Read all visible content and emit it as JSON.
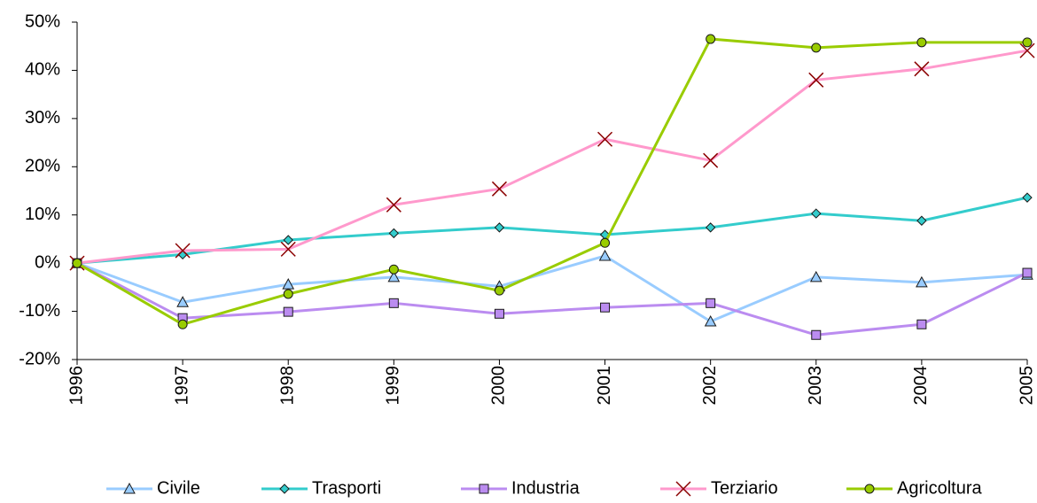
{
  "chart_data": {
    "type": "line",
    "categories": [
      "1996",
      "1997",
      "1998",
      "1999",
      "2000",
      "2001",
      "2002",
      "2003",
      "2004",
      "2005"
    ],
    "ylim": [
      -20,
      50
    ],
    "yticks": [
      {
        "value": -20,
        "label": "-20%"
      },
      {
        "value": -10,
        "label": "-10%"
      },
      {
        "value": 0,
        "label": "0%"
      },
      {
        "value": 10,
        "label": "10%"
      },
      {
        "value": 20,
        "label": "20%"
      },
      {
        "value": 30,
        "label": "30%"
      },
      {
        "value": 40,
        "label": "40%"
      },
      {
        "value": 50,
        "label": "50%"
      }
    ],
    "grid": false,
    "legend": "bottom",
    "series": [
      {
        "name": "Civile",
        "color": "#99ccff",
        "marker": "triangle",
        "values": [
          0,
          -8.1,
          -4.4,
          -2.9,
          -4.8,
          1.5,
          -12.1,
          -2.9,
          -4.0,
          -2.4
        ]
      },
      {
        "name": "Trasporti",
        "color": "#33cccc",
        "marker": "diamond",
        "values": [
          0,
          1.8,
          4.8,
          6.2,
          7.4,
          5.9,
          7.4,
          10.3,
          8.8,
          13.6
        ]
      },
      {
        "name": "Industria",
        "color": "#bb8cf0",
        "marker": "square",
        "values": [
          0,
          -11.4,
          -10.1,
          -8.3,
          -10.5,
          -9.2,
          -8.3,
          -14.9,
          -12.7,
          -2.0
        ]
      },
      {
        "name": "Terziario",
        "color": "#ff99cc",
        "marker": "x",
        "values": [
          0,
          2.6,
          2.9,
          12.1,
          15.4,
          25.7,
          21.3,
          38.0,
          40.3,
          44.1
        ]
      },
      {
        "name": "Agricoltura",
        "color": "#99cc00",
        "marker": "circle",
        "values": [
          0,
          -12.7,
          -6.4,
          -1.3,
          -5.7,
          4.2,
          46.5,
          44.7,
          45.8,
          45.8
        ]
      }
    ]
  }
}
